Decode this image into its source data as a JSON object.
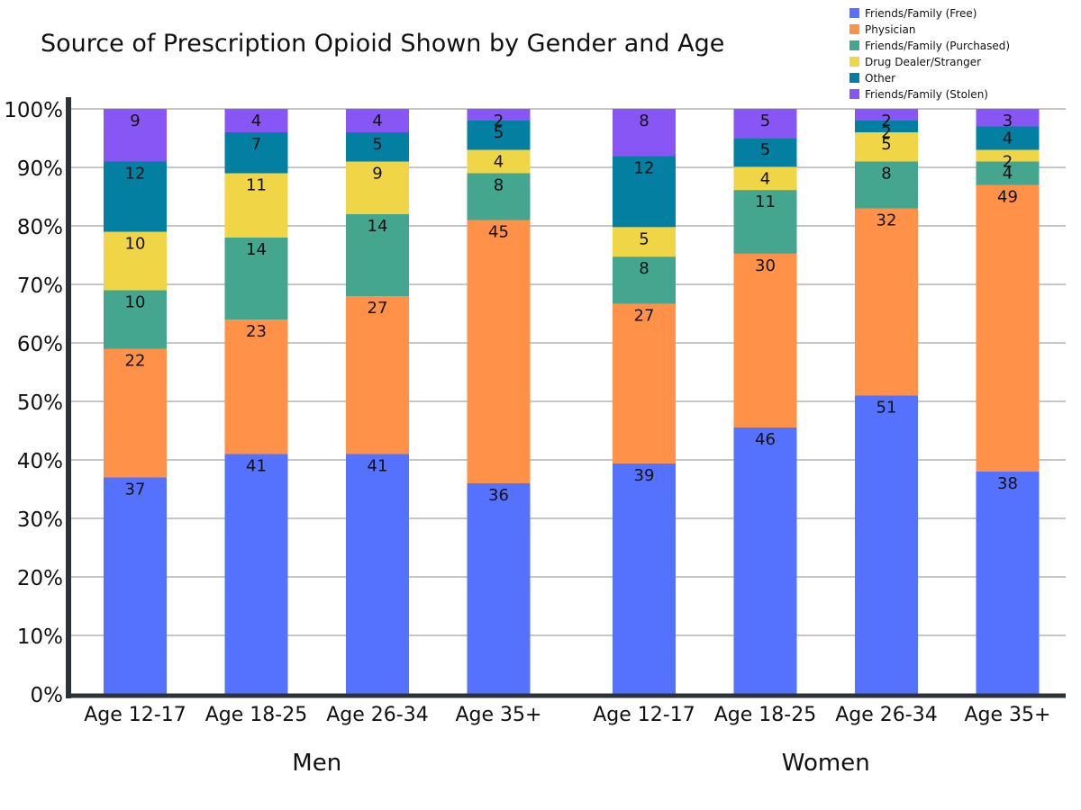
{
  "chart_data": {
    "type": "bar",
    "stacked": true,
    "title": "Source of Prescription Opioid Shown by Gender and Age",
    "xlabel": "",
    "ylabel": "",
    "ylim": [
      0,
      100
    ],
    "y_ticks": [
      "0%",
      "10%",
      "20%",
      "30%",
      "40%",
      "50%",
      "60%",
      "70%",
      "80%",
      "90%",
      "100%"
    ],
    "grid": true,
    "legend_position": "top-right",
    "groups": [
      {
        "label": "Men",
        "categories": [
          "Age 12-17",
          "Age 18-25",
          "Age 26-34",
          "Age 35+"
        ]
      },
      {
        "label": "Women",
        "categories": [
          "Age 12-17",
          "Age 18-25",
          "Age 26-34",
          "Age 35+"
        ]
      }
    ],
    "series": [
      {
        "name": "Friends/Family (Free)",
        "color": "#5572ff",
        "values": [
          37,
          41,
          41,
          36,
          39,
          46,
          51,
          38
        ]
      },
      {
        "name": "Physician",
        "color": "#ff9248",
        "values": [
          22,
          23,
          27,
          45,
          27,
          30,
          32,
          49
        ]
      },
      {
        "name": "Friends/Family (Purchased)",
        "color": "#45a68f",
        "values": [
          10,
          14,
          14,
          8,
          8,
          11,
          8,
          4
        ]
      },
      {
        "name": "Drug Dealer/Stranger",
        "color": "#f0d547",
        "values": [
          10,
          11,
          9,
          4,
          5,
          4,
          5,
          2
        ]
      },
      {
        "name": "Other",
        "color": "#037fa1",
        "values": [
          12,
          7,
          5,
          5,
          12,
          5,
          2,
          4
        ]
      },
      {
        "name": "Friends/Family (Stolen)",
        "color": "#8856f5",
        "values": [
          9,
          4,
          4,
          2,
          8,
          5,
          2,
          3
        ]
      }
    ]
  }
}
